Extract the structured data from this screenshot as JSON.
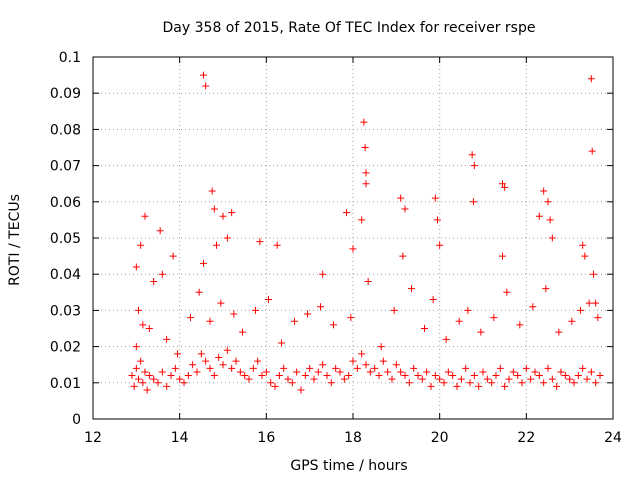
{
  "chart_data": {
    "type": "scatter",
    "title": "Day 358 of 2015, Rate Of TEC Index for receiver rspe",
    "xlabel": "GPS time / hours",
    "ylabel": "ROTI / TECUs",
    "xlim": [
      12,
      24
    ],
    "ylim": [
      0,
      0.1
    ],
    "x_ticks": [
      12,
      14,
      16,
      18,
      20,
      22,
      24
    ],
    "x_tick_labels": [
      "12",
      "14",
      "16",
      "18",
      "20",
      "22",
      "24"
    ],
    "y_ticks": [
      0,
      0.01,
      0.02,
      0.03,
      0.04,
      0.05,
      0.06,
      0.07,
      0.08,
      0.09,
      0.1
    ],
    "y_tick_labels": [
      "0",
      "0.01",
      "0.02",
      "0.03",
      "0.04",
      "0.05",
      "0.06",
      "0.07",
      "0.08",
      "0.09",
      "0.1"
    ],
    "grid": true,
    "marker": "+",
    "marker_color": "#ff0000",
    "series": [
      {
        "name": "ROTI",
        "x": [
          12.9,
          12.95,
          13.0,
          13.05,
          13.1,
          13.15,
          13.2,
          13.25,
          13.3,
          13.4,
          13.5,
          13.6,
          13.7,
          13.8,
          13.9,
          14.0,
          14.1,
          14.2,
          14.3,
          14.4,
          14.5,
          14.6,
          14.7,
          14.8,
          14.9,
          15.0,
          15.1,
          15.2,
          15.3,
          15.4,
          15.5,
          15.6,
          15.7,
          15.8,
          15.9,
          16.0,
          16.1,
          16.2,
          16.3,
          16.4,
          16.5,
          16.6,
          16.7,
          16.8,
          16.9,
          17.0,
          17.1,
          17.2,
          17.3,
          17.4,
          17.5,
          17.6,
          17.7,
          17.8,
          17.9,
          18.0,
          18.1,
          18.2,
          18.3,
          18.4,
          18.5,
          18.6,
          18.7,
          18.8,
          18.9,
          19.0,
          19.1,
          19.2,
          19.3,
          19.4,
          19.5,
          19.6,
          19.7,
          19.8,
          19.9,
          20.0,
          20.1,
          20.2,
          20.3,
          20.4,
          20.5,
          20.6,
          20.7,
          20.8,
          20.9,
          21.0,
          21.1,
          21.2,
          21.3,
          21.4,
          21.5,
          21.6,
          21.7,
          21.8,
          21.9,
          22.0,
          22.1,
          22.2,
          22.3,
          22.4,
          22.5,
          22.6,
          22.7,
          22.8,
          22.9,
          23.0,
          23.1,
          23.2,
          23.3,
          23.4,
          23.5,
          23.6,
          23.7,
          13.0,
          13.1,
          13.05,
          13.2,
          13.3,
          13.55,
          13.6,
          13.85,
          14.55,
          14.6,
          14.55,
          14.75,
          14.8,
          14.85,
          15.0,
          15.1,
          15.2,
          15.85,
          16.25,
          17.3,
          17.85,
          18.0,
          18.25,
          18.28,
          18.3,
          18.3,
          18.2,
          19.1,
          19.2,
          19.15,
          19.9,
          19.95,
          20.0,
          20.75,
          20.8,
          20.78,
          21.45,
          21.5,
          21.45,
          22.3,
          22.4,
          22.5,
          22.55,
          22.6,
          23.3,
          23.35,
          23.5,
          23.52,
          23.55,
          23.6,
          13.0,
          13.15,
          13.4,
          13.7,
          13.95,
          14.25,
          14.45,
          14.7,
          14.95,
          15.25,
          15.45,
          15.75,
          16.05,
          16.35,
          16.65,
          16.95,
          17.25,
          17.55,
          17.95,
          18.35,
          18.65,
          18.95,
          19.35,
          19.65,
          19.85,
          20.15,
          20.45,
          20.65,
          20.95,
          21.25,
          21.55,
          21.85,
          22.15,
          22.45,
          22.75,
          23.05,
          23.25,
          23.45,
          23.65
        ],
        "y": [
          0.012,
          0.009,
          0.014,
          0.011,
          0.016,
          0.01,
          0.013,
          0.008,
          0.012,
          0.011,
          0.01,
          0.013,
          0.009,
          0.012,
          0.014,
          0.011,
          0.01,
          0.012,
          0.015,
          0.013,
          0.018,
          0.016,
          0.014,
          0.012,
          0.017,
          0.015,
          0.019,
          0.014,
          0.016,
          0.013,
          0.012,
          0.011,
          0.014,
          0.016,
          0.012,
          0.013,
          0.01,
          0.009,
          0.012,
          0.014,
          0.011,
          0.01,
          0.013,
          0.008,
          0.012,
          0.014,
          0.011,
          0.013,
          0.015,
          0.012,
          0.01,
          0.014,
          0.013,
          0.011,
          0.012,
          0.016,
          0.014,
          0.018,
          0.015,
          0.013,
          0.014,
          0.012,
          0.016,
          0.013,
          0.011,
          0.015,
          0.013,
          0.012,
          0.01,
          0.014,
          0.012,
          0.011,
          0.013,
          0.009,
          0.012,
          0.011,
          0.01,
          0.013,
          0.012,
          0.009,
          0.011,
          0.014,
          0.01,
          0.012,
          0.009,
          0.013,
          0.011,
          0.01,
          0.012,
          0.014,
          0.009,
          0.011,
          0.013,
          0.012,
          0.01,
          0.014,
          0.011,
          0.013,
          0.012,
          0.01,
          0.014,
          0.011,
          0.009,
          0.013,
          0.012,
          0.011,
          0.01,
          0.012,
          0.014,
          0.011,
          0.013,
          0.01,
          0.012,
          0.042,
          0.048,
          0.03,
          0.056,
          0.025,
          0.052,
          0.04,
          0.045,
          0.095,
          0.092,
          0.043,
          0.063,
          0.058,
          0.048,
          0.056,
          0.05,
          0.057,
          0.049,
          0.048,
          0.04,
          0.057,
          0.047,
          0.082,
          0.075,
          0.065,
          0.068,
          0.055,
          0.061,
          0.058,
          0.045,
          0.061,
          0.055,
          0.048,
          0.073,
          0.07,
          0.06,
          0.065,
          0.064,
          0.045,
          0.056,
          0.063,
          0.06,
          0.055,
          0.05,
          0.048,
          0.045,
          0.094,
          0.074,
          0.04,
          0.032,
          0.02,
          0.026,
          0.038,
          0.022,
          0.018,
          0.028,
          0.035,
          0.027,
          0.032,
          0.029,
          0.024,
          0.03,
          0.033,
          0.021,
          0.027,
          0.029,
          0.031,
          0.026,
          0.028,
          0.038,
          0.02,
          0.03,
          0.036,
          0.025,
          0.033,
          0.022,
          0.027,
          0.03,
          0.024,
          0.028,
          0.035,
          0.026,
          0.031,
          0.036,
          0.024,
          0.027,
          0.03,
          0.032,
          0.028
        ]
      }
    ]
  }
}
